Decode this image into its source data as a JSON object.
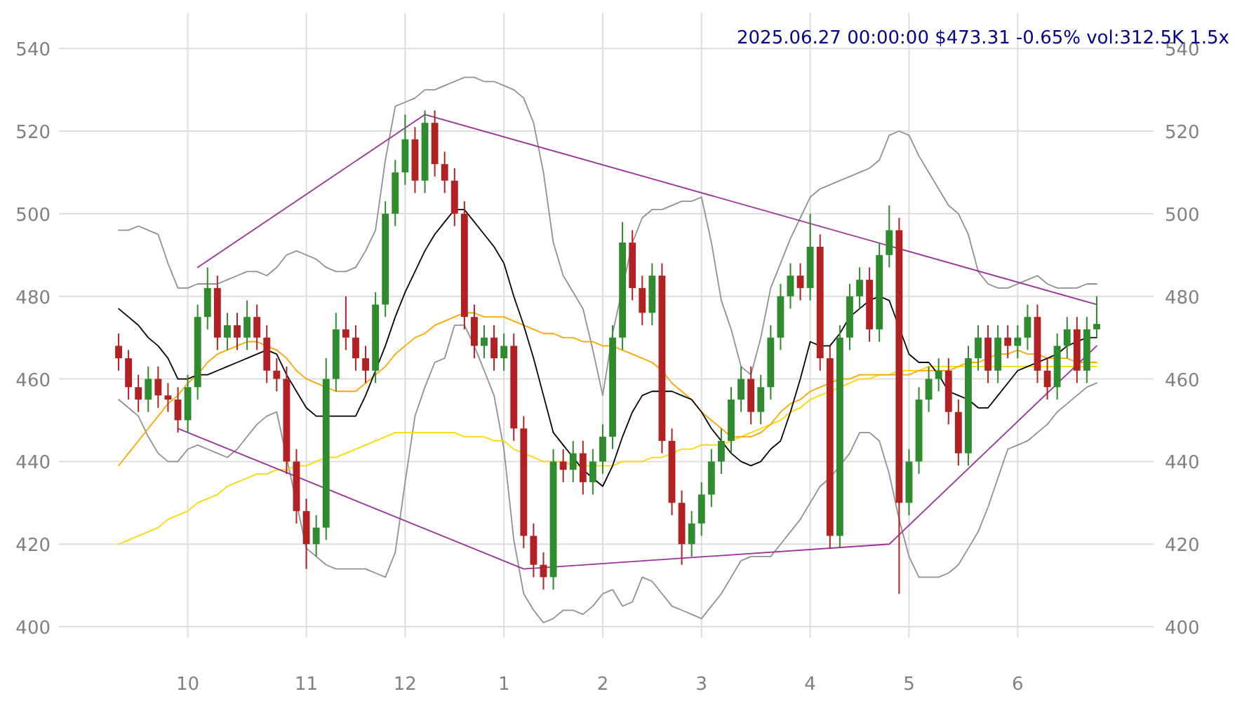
{
  "chart_data": {
    "type": "candlestick",
    "title": "2025.06.27 00:00:00 $473.31 -0.65% vol:312.5K 1.5x",
    "categories": [
      null,
      null,
      null,
      null,
      null,
      null,
      null,
      "10",
      null,
      null,
      null,
      null,
      null,
      null,
      null,
      null,
      null,
      null,
      null,
      "11",
      null,
      null,
      null,
      null,
      null,
      null,
      null,
      null,
      null,
      "12",
      null,
      null,
      null,
      null,
      null,
      null,
      null,
      null,
      null,
      "1",
      null,
      null,
      null,
      null,
      null,
      null,
      null,
      null,
      null,
      "2",
      null,
      null,
      null,
      null,
      null,
      null,
      null,
      null,
      null,
      "3",
      null,
      null,
      null,
      null,
      null,
      null,
      null,
      null,
      null,
      null,
      "4",
      null,
      null,
      null,
      null,
      null,
      null,
      null,
      null,
      null,
      "5",
      null,
      null,
      null,
      null,
      null,
      null,
      null,
      null,
      null,
      null,
      "6",
      null,
      null,
      null,
      null,
      null,
      null,
      null,
      null
    ],
    "ohlc": [
      [
        468,
        471,
        462,
        465
      ],
      [
        465,
        467,
        455,
        458
      ],
      [
        458,
        461,
        452,
        455
      ],
      [
        455,
        463,
        452,
        460
      ],
      [
        460,
        463,
        453,
        456
      ],
      [
        456,
        459,
        452,
        455
      ],
      [
        455,
        458,
        447,
        450
      ],
      [
        450,
        461,
        447,
        458
      ],
      [
        458,
        478,
        455,
        475
      ],
      [
        475,
        487,
        472,
        482
      ],
      [
        482,
        485,
        467,
        470
      ],
      [
        470,
        476,
        467,
        473
      ],
      [
        473,
        476,
        467,
        470
      ],
      [
        470,
        479,
        467,
        475
      ],
      [
        475,
        478,
        467,
        470
      ],
      [
        470,
        473,
        459,
        462
      ],
      [
        462,
        465,
        457,
        460
      ],
      [
        460,
        463,
        437,
        440
      ],
      [
        440,
        443,
        425,
        428
      ],
      [
        428,
        431,
        414,
        420
      ],
      [
        420,
        427,
        417,
        424
      ],
      [
        424,
        465,
        421,
        460
      ],
      [
        460,
        476,
        457,
        472
      ],
      [
        472,
        480,
        467,
        470
      ],
      [
        470,
        473,
        462,
        465
      ],
      [
        465,
        468,
        459,
        462
      ],
      [
        462,
        481,
        459,
        478
      ],
      [
        478,
        503,
        475,
        500
      ],
      [
        500,
        513,
        497,
        510
      ],
      [
        510,
        524,
        507,
        518
      ],
      [
        518,
        521,
        505,
        508
      ],
      [
        508,
        525,
        505,
        522
      ],
      [
        522,
        525,
        509,
        512
      ],
      [
        512,
        515,
        505,
        508
      ],
      [
        508,
        511,
        497,
        500
      ],
      [
        500,
        503,
        472,
        475
      ],
      [
        475,
        478,
        465,
        468
      ],
      [
        468,
        473,
        465,
        470
      ],
      [
        470,
        473,
        462,
        465
      ],
      [
        465,
        471,
        462,
        468
      ],
      [
        468,
        471,
        445,
        448
      ],
      [
        448,
        451,
        419,
        422
      ],
      [
        422,
        425,
        412,
        415
      ],
      [
        415,
        418,
        409,
        412
      ],
      [
        412,
        443,
        409,
        440
      ],
      [
        440,
        443,
        435,
        438
      ],
      [
        438,
        445,
        435,
        442
      ],
      [
        442,
        445,
        432,
        435
      ],
      [
        435,
        443,
        432,
        440
      ],
      [
        440,
        449,
        437,
        446
      ],
      [
        446,
        473,
        443,
        470
      ],
      [
        470,
        498,
        467,
        493
      ],
      [
        493,
        496,
        479,
        482
      ],
      [
        482,
        485,
        473,
        476
      ],
      [
        476,
        488,
        473,
        485
      ],
      [
        485,
        488,
        442,
        445
      ],
      [
        445,
        448,
        427,
        430
      ],
      [
        430,
        433,
        415,
        420
      ],
      [
        420,
        428,
        417,
        425
      ],
      [
        425,
        435,
        422,
        432
      ],
      [
        432,
        443,
        429,
        440
      ],
      [
        440,
        448,
        437,
        445
      ],
      [
        445,
        458,
        442,
        455
      ],
      [
        455,
        463,
        452,
        460
      ],
      [
        460,
        463,
        449,
        452
      ],
      [
        452,
        461,
        449,
        458
      ],
      [
        458,
        473,
        455,
        470
      ],
      [
        470,
        483,
        467,
        480
      ],
      [
        480,
        488,
        477,
        485
      ],
      [
        485,
        488,
        479,
        482
      ],
      [
        482,
        500,
        479,
        492
      ],
      [
        492,
        495,
        462,
        465
      ],
      [
        465,
        468,
        419,
        422
      ],
      [
        422,
        473,
        419,
        470
      ],
      [
        470,
        483,
        467,
        480
      ],
      [
        480,
        487,
        477,
        484
      ],
      [
        484,
        487,
        469,
        472
      ],
      [
        472,
        493,
        469,
        490
      ],
      [
        490,
        502,
        487,
        496
      ],
      [
        496,
        499,
        408,
        430
      ],
      [
        430,
        443,
        427,
        440
      ],
      [
        440,
        458,
        437,
        455
      ],
      [
        455,
        463,
        452,
        460
      ],
      [
        460,
        465,
        457,
        462
      ],
      [
        462,
        465,
        449,
        452
      ],
      [
        452,
        455,
        439,
        442
      ],
      [
        442,
        468,
        439,
        465
      ],
      [
        465,
        473,
        462,
        470
      ],
      [
        470,
        473,
        459,
        462
      ],
      [
        462,
        473,
        459,
        470
      ],
      [
        470,
        473,
        465,
        468
      ],
      [
        468,
        473,
        465,
        470
      ],
      [
        470,
        478,
        467,
        475
      ],
      [
        475,
        478,
        459,
        462
      ],
      [
        462,
        465,
        455,
        458
      ],
      [
        458,
        471,
        455,
        468
      ],
      [
        468,
        475,
        465,
        472
      ],
      [
        472,
        475,
        459,
        462
      ],
      [
        462,
        475,
        459,
        472
      ],
      [
        472,
        480,
        470,
        473.31
      ]
    ],
    "colors": [
      "#b22222",
      "#b22222",
      "#b22222",
      "#2e8b2e",
      "#b22222",
      "#b22222",
      "#b22222",
      "#2e8b2e",
      "#2e8b2e",
      "#2e8b2e",
      "#b22222",
      "#2e8b2e",
      "#b22222",
      "#2e8b2e",
      "#b22222",
      "#b22222",
      "#b22222",
      "#b22222",
      "#b22222",
      "#b22222",
      "#2e8b2e",
      "#2e8b2e",
      "#2e8b2e",
      "#b22222",
      "#b22222",
      "#b22222",
      "#2e8b2e",
      "#2e8b2e",
      "#2e8b2e",
      "#2e8b2e",
      "#b22222",
      "#2e8b2e",
      "#b22222",
      "#b22222",
      "#b22222",
      "#b22222",
      "#b22222",
      "#2e8b2e",
      "#b22222",
      "#2e8b2e",
      "#b22222",
      "#b22222",
      "#b22222",
      "#b22222",
      "#2e8b2e",
      "#b22222",
      "#2e8b2e",
      "#b22222",
      "#2e8b2e",
      "#2e8b2e",
      "#2e8b2e",
      "#2e8b2e",
      "#b22222",
      "#b22222",
      "#2e8b2e",
      "#b22222",
      "#b22222",
      "#b22222",
      "#2e8b2e",
      "#2e8b2e",
      "#2e8b2e",
      "#2e8b2e",
      "#2e8b2e",
      "#2e8b2e",
      "#b22222",
      "#2e8b2e",
      "#2e8b2e",
      "#2e8b2e",
      "#2e8b2e",
      "#b22222",
      "#2e8b2e",
      "#b22222",
      "#b22222",
      "#2e8b2e",
      "#2e8b2e",
      "#2e8b2e",
      "#b22222",
      "#2e8b2e",
      "#2e8b2e",
      "#b22222",
      "#2e8b2e",
      "#2e8b2e",
      "#2e8b2e",
      "#2e8b2e",
      "#b22222",
      "#b22222",
      "#2e8b2e",
      "#2e8b2e",
      "#b22222",
      "#2e8b2e",
      "#b22222",
      "#2e8b2e",
      "#2e8b2e",
      "#b22222",
      "#b22222",
      "#2e8b2e",
      "#2e8b2e",
      "#b22222",
      "#2e8b2e",
      "#2e8b2e"
    ],
    "series": [
      {
        "type": "line",
        "color": "#909090",
        "values": [
          496,
          496,
          497,
          496,
          495,
          488,
          482,
          482,
          483,
          483,
          483,
          484,
          485,
          486,
          486,
          485,
          487,
          490,
          491,
          490,
          489,
          487,
          486,
          486,
          487,
          491,
          496,
          513,
          526,
          527,
          528,
          530,
          530,
          531,
          532,
          533,
          533,
          532,
          532,
          531,
          530,
          528,
          522,
          510,
          493,
          485,
          481,
          477,
          467,
          456,
          471,
          null,
          493,
          499,
          501,
          501,
          502,
          503,
          503,
          504,
          493,
          479,
          472,
          463,
          461,
          470,
          482,
          488,
          494,
          499,
          504,
          506,
          507,
          508,
          509,
          510,
          511,
          513,
          519,
          520,
          519,
          514,
          510,
          506,
          502,
          500,
          495,
          486,
          483,
          482,
          482,
          483,
          484,
          485,
          483,
          482,
          482,
          482,
          483,
          483
        ]
      },
      {
        "type": "line",
        "color": "#909090",
        "values": [
          455,
          453,
          451,
          446,
          442,
          440,
          440,
          443,
          444,
          443,
          442,
          441,
          443,
          446,
          449,
          451,
          452,
          null,
          null,
          419,
          417,
          415,
          414,
          414,
          414,
          414,
          413,
          412,
          418,
          435,
          451,
          458,
          464,
          465,
          473,
          473,
          468,
          462,
          456,
          443,
          421,
          408,
          404,
          401,
          402,
          404,
          404,
          403,
          405,
          408,
          409,
          405,
          406,
          412,
          411,
          408,
          405,
          404,
          403,
          402,
          405,
          408,
          412,
          416,
          417,
          417,
          417,
          420,
          423,
          426,
          430,
          434,
          436,
          439,
          442,
          447,
          447,
          445,
          437,
          426,
          417,
          412,
          412,
          412,
          413,
          415,
          419,
          423,
          429,
          436,
          443,
          444,
          445,
          447,
          449,
          452,
          454,
          456,
          458,
          459
        ]
      },
      {
        "type": "line",
        "color": "#ffd700",
        "values": [
          420,
          421,
          422,
          423,
          424,
          426,
          427,
          428,
          430,
          431,
          432,
          434,
          435,
          436,
          437,
          437,
          438,
          438,
          439,
          439,
          440,
          441,
          441,
          442,
          443,
          444,
          445,
          446,
          447,
          447,
          447,
          447,
          447,
          447,
          447,
          446,
          446,
          446,
          445,
          445,
          443,
          442,
          441,
          440,
          440,
          440,
          439,
          439,
          439,
          439,
          439,
          440,
          440,
          440,
          441,
          441,
          442,
          443,
          443,
          444,
          444,
          444,
          445,
          446,
          447,
          448,
          449,
          450,
          452,
          453,
          455,
          456,
          457,
          458,
          459,
          460,
          460,
          461,
          461,
          462,
          462,
          462,
          463,
          463,
          463,
          463,
          463,
          463,
          463,
          463,
          463,
          463,
          463,
          463,
          463,
          463,
          463,
          463,
          463,
          463
        ]
      },
      {
        "type": "line",
        "color": "#ffa500",
        "values": [
          439,
          442,
          445,
          448,
          451,
          454,
          456,
          459,
          461,
          464,
          466,
          467,
          468,
          469,
          469,
          468,
          467,
          465,
          462,
          460,
          459,
          458,
          457,
          457,
          457,
          459,
          461,
          463,
          466,
          468,
          470,
          471,
          473,
          474,
          475,
          476,
          476,
          475,
          475,
          475,
          474,
          473,
          472,
          471,
          471,
          470,
          470,
          469,
          469,
          468,
          468,
          467,
          466,
          465,
          464,
          462,
          459,
          457,
          455,
          452,
          450,
          448,
          446,
          446,
          446,
          447,
          449,
          452,
          454,
          455,
          457,
          458,
          459,
          460,
          460,
          461,
          461,
          461,
          461,
          461,
          461,
          462,
          462,
          462,
          462,
          463,
          464,
          464,
          465,
          466,
          466,
          467,
          466,
          466,
          465,
          465,
          465,
          464,
          464,
          464
        ]
      },
      {
        "type": "line",
        "color": "#000000",
        "values": [
          477,
          475,
          473,
          470,
          468,
          465,
          460,
          460,
          461,
          461,
          462,
          463,
          464,
          465,
          466,
          467,
          466,
          461,
          457,
          453,
          451,
          451,
          451,
          451,
          451,
          456,
          462,
          468,
          475,
          481,
          486,
          491,
          495,
          498,
          501,
          501,
          498,
          495,
          492,
          488,
          480,
          473,
          465,
          456,
          447,
          444,
          441,
          438,
          436,
          434,
          439,
          446,
          452,
          456,
          457,
          457,
          457,
          456,
          455,
          452,
          448,
          445,
          442,
          440,
          439,
          440,
          443,
          445,
          452,
          460,
          469,
          468,
          468,
          471,
          475,
          477,
          479,
          480,
          479,
          null,
          466,
          464,
          464,
          461,
          457,
          456,
          455,
          453,
          453,
          456,
          459,
          462,
          463,
          464,
          465,
          466,
          468,
          469,
          470,
          470
        ]
      },
      {
        "type": "line",
        "color": "#9b309b",
        "values": [
          null,
          null,
          null,
          null,
          null,
          null,
          null,
          null,
          487,
          null,
          null,
          null,
          null,
          null,
          null,
          null,
          null,
          null,
          null,
          null,
          null,
          null,
          null,
          null,
          null,
          null,
          null,
          null,
          null,
          null,
          null,
          524,
          null,
          null,
          null,
          null,
          null,
          null,
          null,
          null,
          null,
          null,
          null,
          null,
          null,
          null,
          null,
          null,
          null,
          null,
          null,
          null,
          null,
          null,
          null,
          null,
          null,
          null,
          null,
          null,
          null,
          null,
          null,
          null,
          null,
          null,
          null,
          null,
          null,
          null,
          null,
          null,
          null,
          null,
          null,
          null,
          null,
          null,
          null,
          null,
          null,
          null,
          null,
          null,
          null,
          null,
          null,
          null,
          null,
          null,
          null,
          null,
          null,
          null,
          null,
          null,
          null,
          null,
          null,
          478
        ]
      },
      {
        "type": "line",
        "color": "#9b309b",
        "values": [
          null,
          null,
          null,
          null,
          null,
          null,
          448,
          null,
          null,
          null,
          null,
          null,
          null,
          null,
          null,
          null,
          null,
          null,
          null,
          null,
          null,
          null,
          null,
          null,
          null,
          null,
          null,
          null,
          null,
          null,
          null,
          null,
          null,
          null,
          null,
          null,
          null,
          null,
          null,
          null,
          null,
          414,
          null,
          null,
          null,
          null,
          null,
          null,
          null,
          null,
          null,
          null,
          null,
          null,
          null,
          null,
          null,
          null,
          null,
          null,
          null,
          null,
          null,
          null,
          null,
          null,
          null,
          null,
          null,
          null,
          null,
          null,
          null,
          null,
          null,
          null,
          null,
          null,
          420,
          null,
          null,
          null,
          null,
          null,
          null,
          null,
          null,
          null,
          null,
          null,
          null,
          null,
          null,
          null,
          null,
          null,
          null,
          null,
          null,
          468
        ]
      }
    ],
    "ylim": [
      399,
      548
    ],
    "yticks": [
      400,
      420,
      440,
      460,
      480,
      500,
      520,
      540
    ],
    "y2lim": [
      399,
      548
    ],
    "y2ticks": [
      400,
      420,
      440,
      460,
      480,
      500,
      520,
      540
    ],
    "grid": true
  }
}
